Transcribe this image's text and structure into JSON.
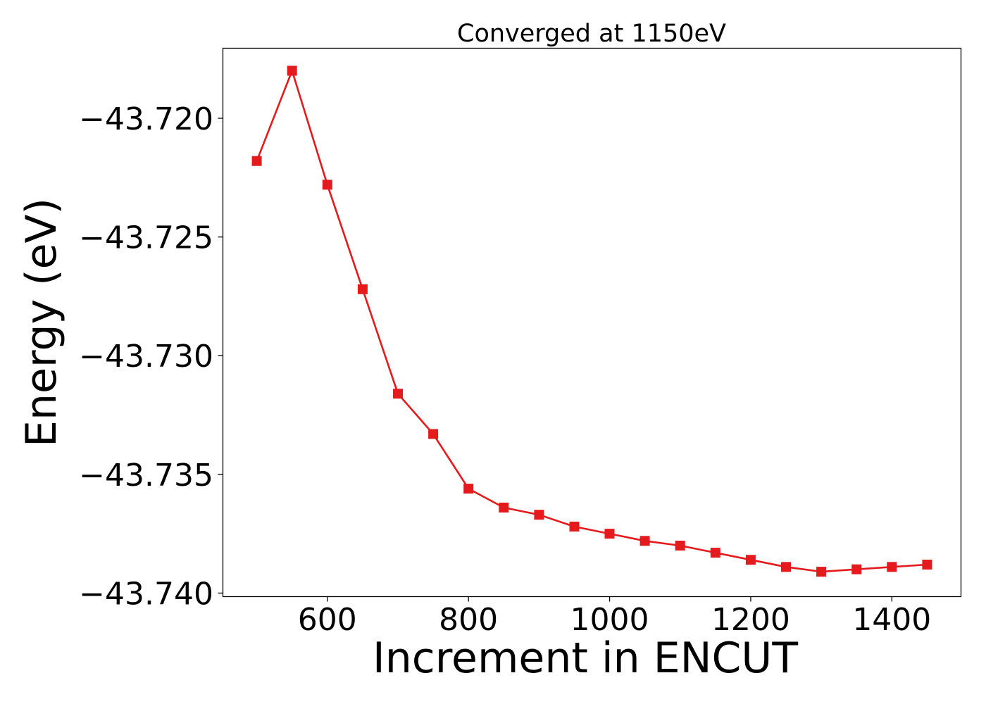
{
  "chart_data": {
    "type": "line",
    "title": "Converged at 1150eV",
    "xlabel": "Increment in ENCUT",
    "ylabel": "Energy (eV)",
    "xlim": [
      452,
      1498
    ],
    "ylim": [
      -43.74015,
      -43.71705
    ],
    "xticks": [
      600,
      800,
      1000,
      1200,
      1400
    ],
    "yticks": [
      -43.72,
      -43.725,
      -43.73,
      -43.735,
      -43.74
    ],
    "ytick_labels": [
      "−43.720",
      "−43.725",
      "−43.730",
      "−43.735",
      "−43.740"
    ],
    "grid": false,
    "legend": "none",
    "marker": "square",
    "series": [
      {
        "color": "#e41a1c",
        "x": [
          500,
          550,
          600,
          650,
          700,
          750,
          800,
          850,
          900,
          950,
          1000,
          1050,
          1100,
          1150,
          1200,
          1250,
          1300,
          1350,
          1400,
          1450
        ],
        "values": [
          -43.7218,
          -43.718,
          -43.7228,
          -43.7272,
          -43.7316,
          -43.7333,
          -43.7356,
          -43.7364,
          -43.7367,
          -43.7372,
          -43.7375,
          -43.7378,
          -43.738,
          -43.7383,
          -43.7386,
          -43.7389,
          -43.7391,
          -43.739,
          -43.7389,
          -43.7388
        ]
      }
    ]
  }
}
